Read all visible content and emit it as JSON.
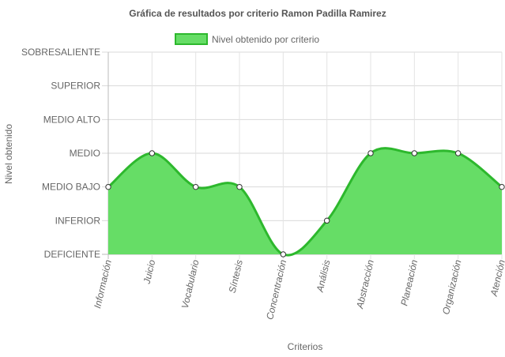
{
  "chart_data": {
    "type": "area",
    "title": "Gráfica de resultados por criterio Ramon Padilla Ramirez",
    "xlabel": "Criterios",
    "ylabel": "Nivel obtenido",
    "categories": [
      "Información",
      "Juicio",
      "Vocabulario",
      "Síntesis",
      "Concentración",
      "Análisis",
      "Abstracción",
      "Planeación",
      "Organización",
      "Atención"
    ],
    "y_levels": [
      "DEFICIENTE",
      "INFERIOR",
      "MEDIO BAJO",
      "MEDIO",
      "MEDIO ALTO",
      "SUPERIOR",
      "SOBRESALIENTE"
    ],
    "ylim": [
      0,
      6
    ],
    "series": [
      {
        "name": "Nivel obtenido por criterio",
        "values": [
          2,
          3,
          2,
          2,
          0,
          1,
          3,
          3,
          3,
          2
        ],
        "fill_color": "#66dd66",
        "line_color": "#2db82d"
      }
    ],
    "grid": true,
    "legend_position": "top"
  }
}
